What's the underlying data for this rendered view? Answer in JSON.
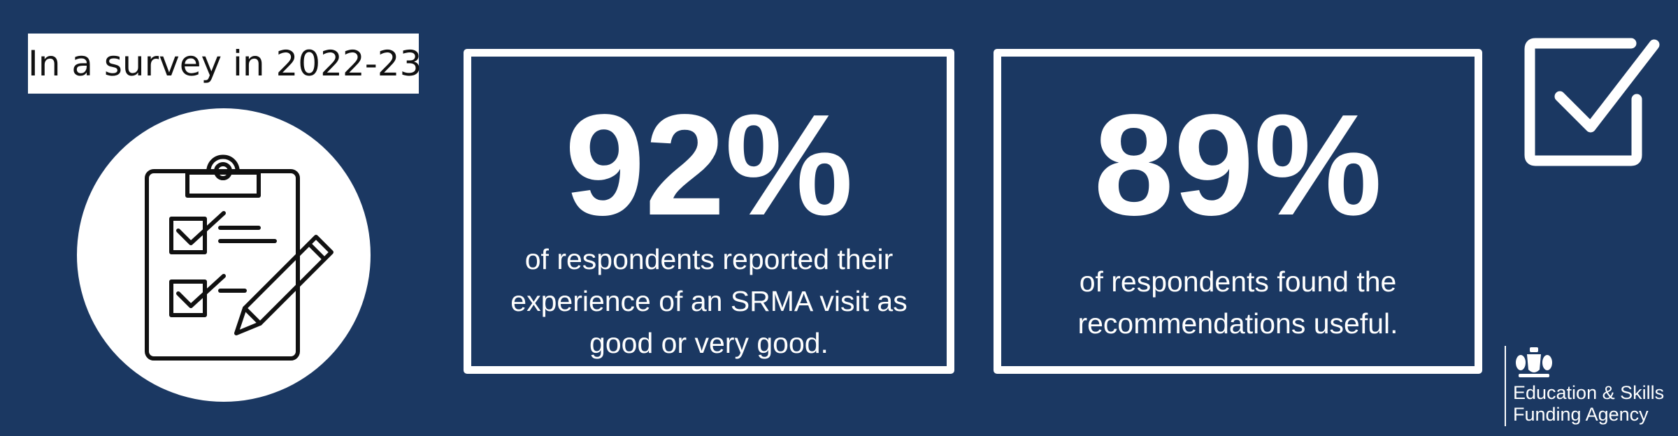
{
  "survey_label": "In a survey in 2022-23",
  "icons": {
    "clipboard": "clipboard-checklist-icon",
    "checkbox": "checkbox-check-icon",
    "crest": "royal-crest-icon"
  },
  "stats": [
    {
      "value": "92%",
      "description": "of respondents reported their experience of an SRMA visit as good or very good."
    },
    {
      "value": "89%",
      "description": "of respondents found the recommendations useful."
    }
  ],
  "logo": {
    "line1": "Education & Skills",
    "line2": "Funding Agency"
  },
  "colors": {
    "background": "#1b3862",
    "foreground": "#ffffff"
  }
}
